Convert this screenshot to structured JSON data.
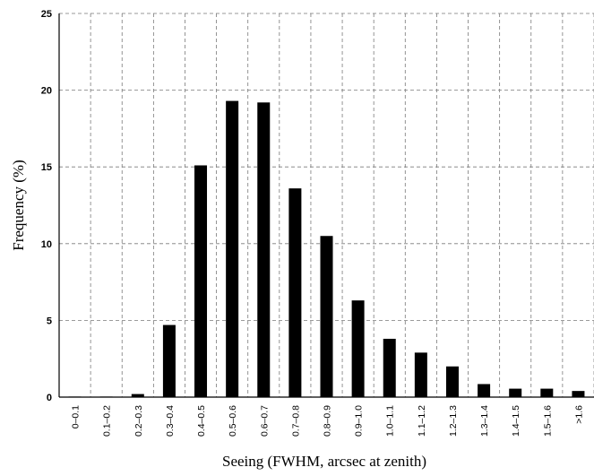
{
  "chart_data": {
    "type": "bar",
    "title": "",
    "xlabel": "Seeing (FWHM, arcsec at zenith)",
    "ylabel": "Frequency (%)",
    "ylim": [
      0,
      25
    ],
    "yticks": [
      "0",
      "5",
      "10",
      "15",
      "20",
      "25"
    ],
    "grid": true,
    "legend": "none",
    "categories": [
      "0–0.1",
      "0.1–0.2",
      "0.2–0.3",
      "0.3–0.4",
      "0.4–0.5",
      "0.5–0.6",
      "0.6–0.7",
      "0.7–0.8",
      "0.8–0.9",
      "0.9–1.0",
      "1.0–1.1",
      "1.1–1.2",
      "1.2–1.3",
      "1.3–1.4",
      "1.4–1.5",
      "1.5–1.6",
      ">1.6"
    ],
    "values": [
      0.0,
      0.0,
      0.2,
      4.7,
      15.1,
      19.3,
      19.2,
      13.6,
      10.5,
      6.3,
      3.8,
      2.9,
      2.0,
      0.85,
      0.55,
      0.55,
      0.4
    ],
    "bar_color": "#000000",
    "grid_color": "#7a7a7a"
  }
}
